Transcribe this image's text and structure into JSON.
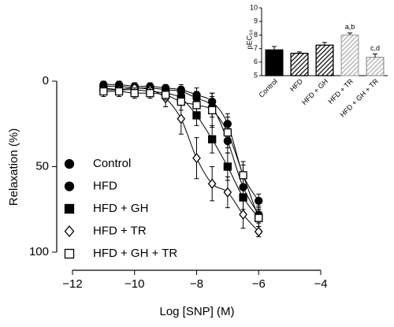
{
  "chart_data": [
    {
      "type": "scatter",
      "xlabel": "Log [SNP] (M)",
      "ylabel": "Relaxation (%)",
      "xlim": [
        -12,
        -4
      ],
      "xticks": [
        {
          "value": -12,
          "label": "−12"
        },
        {
          "value": -10,
          "label": "−10"
        },
        {
          "value": -8,
          "label": "−8"
        },
        {
          "value": -6,
          "label": "−6"
        },
        {
          "value": -4,
          "label": "−4"
        }
      ],
      "ylim": [
        0,
        100
      ],
      "yticks": [
        0,
        50,
        100
      ],
      "y_inverted": true,
      "x": [
        -11,
        -10.5,
        -10,
        -9.5,
        -9,
        -8.5,
        -8,
        -7.5,
        -7,
        -6.5,
        -6
      ],
      "fit_lines": true,
      "legend": "left",
      "series": [
        {
          "name": "Control",
          "color": "#000000",
          "marker": "circle",
          "filled": true,
          "values": [
            2,
            2,
            3,
            3,
            4,
            5,
            8,
            12,
            25,
            55,
            70
          ],
          "errors": [
            2,
            2,
            2,
            2,
            2,
            3,
            4,
            5,
            6,
            6,
            4
          ]
        },
        {
          "name": "HFD",
          "color": "#000000",
          "marker": "circle",
          "filled": true,
          "values": [
            3,
            3,
            4,
            4,
            5,
            6,
            10,
            15,
            35,
            62,
            78
          ],
          "errors": [
            2,
            2,
            2,
            2,
            2,
            3,
            4,
            6,
            7,
            6,
            5
          ]
        },
        {
          "name": "HFD + GH",
          "color": "#000000",
          "marker": "square",
          "filled": true,
          "values": [
            4,
            5,
            5,
            6,
            7,
            10,
            20,
            34,
            50,
            68,
            80
          ],
          "errors": [
            3,
            3,
            3,
            3,
            3,
            4,
            6,
            8,
            8,
            7,
            5
          ]
        },
        {
          "name": "HFD + TR",
          "color": "#000000",
          "marker": "diamond",
          "filled": false,
          "values": [
            5,
            5,
            4,
            5,
            10,
            22,
            45,
            60,
            65,
            78,
            88
          ],
          "errors": [
            3,
            3,
            3,
            3,
            5,
            9,
            12,
            10,
            9,
            8,
            3
          ]
        },
        {
          "name": "HFD + GH + TR",
          "color": "#000000",
          "marker": "square",
          "filled": false,
          "values": [
            6,
            6,
            7,
            7,
            8,
            12,
            14,
            17,
            30,
            55,
            80
          ],
          "errors": [
            3,
            3,
            3,
            3,
            3,
            5,
            8,
            10,
            9,
            8,
            5
          ]
        }
      ]
    },
    {
      "type": "bar",
      "ylabel": "pEC₅₀",
      "categories": [
        "Control",
        "HFD",
        "HFD + GH",
        "HFD + TR",
        "HFD + GH + TR"
      ],
      "values": [
        6.9,
        6.65,
        7.25,
        8.0,
        6.35
      ],
      "errors": [
        0.25,
        0.1,
        0.2,
        0.15,
        0.25
      ],
      "colors": [
        "#000000",
        "#000000",
        "#000000",
        "#aaaaaa",
        "#999999"
      ],
      "hatched": [
        false,
        true,
        true,
        true,
        true
      ],
      "annotations": [
        null,
        null,
        null,
        "a,b",
        "c,d"
      ],
      "ylim": [
        5,
        10
      ],
      "yticks": [
        5,
        6,
        7,
        8,
        9,
        10
      ]
    }
  ]
}
